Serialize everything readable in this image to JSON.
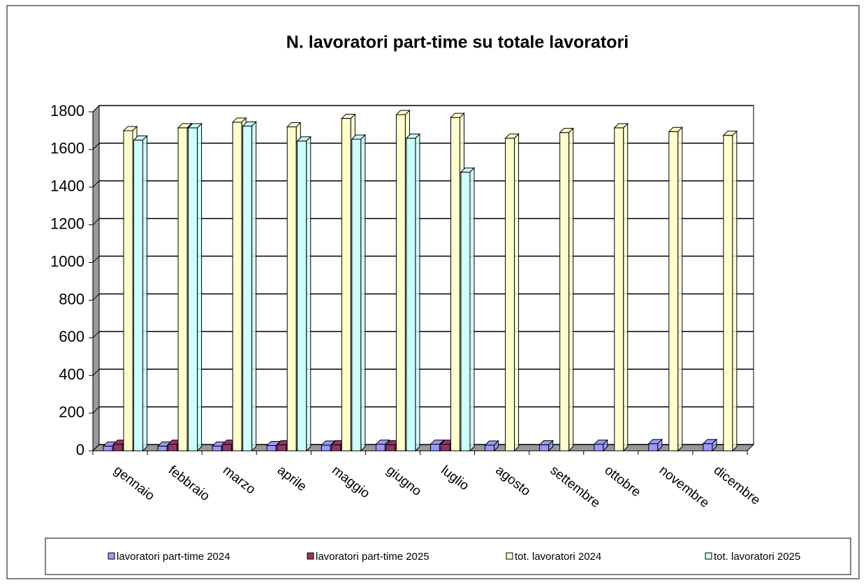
{
  "chart_data": {
    "type": "bar3d",
    "title": "N. lavoratori part-time su totale lavoratori",
    "categories": [
      "gennaio",
      "febbraio",
      "marzo",
      "aprile",
      "maggio",
      "giugno",
      "luglio",
      "agosto",
      "settembre",
      "ottobre",
      "novembre",
      "dicembre"
    ],
    "series": [
      {
        "name": "lavoratori part-time 2024",
        "color": "#9999ff",
        "values": [
          25,
          25,
          25,
          28,
          30,
          35,
          35,
          30,
          32,
          35,
          38,
          38
        ]
      },
      {
        "name": "lavoratori part-time 2025",
        "color": "#993366",
        "values": [
          35,
          35,
          35,
          32,
          32,
          32,
          35,
          null,
          null,
          null,
          null,
          null
        ]
      },
      {
        "name": "tot. lavoratori 2024",
        "color": "#ffffcc",
        "values": [
          1700,
          1715,
          1745,
          1720,
          1765,
          1785,
          1770,
          1660,
          1690,
          1715,
          1695,
          1675
        ]
      },
      {
        "name": "tot. lavoratori 2025",
        "color": "#ccffff",
        "values": [
          1650,
          1715,
          1725,
          1645,
          1655,
          1660,
          1480,
          null,
          null,
          null,
          null,
          null
        ]
      }
    ],
    "ylim": [
      0,
      1800
    ],
    "yticks": [
      0,
      200,
      400,
      600,
      800,
      1000,
      1200,
      1400,
      1600,
      1800
    ],
    "grid": true,
    "legend": "bottom"
  }
}
